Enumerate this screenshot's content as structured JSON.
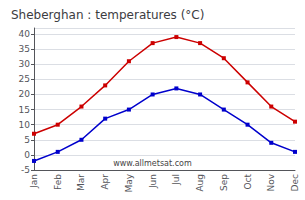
{
  "chart_data": {
    "type": "line",
    "title": "Sheberghan : temperatures (°C)",
    "categories": [
      "Jan",
      "Feb",
      "Mar",
      "Apr",
      "May",
      "Jun",
      "Jul",
      "Aug",
      "Sep",
      "Oct",
      "Nov",
      "Dec"
    ],
    "series": [
      {
        "color": "#cc0000",
        "values": [
          7,
          10,
          16,
          23,
          31,
          37,
          39,
          37,
          32,
          24,
          16,
          11
        ]
      },
      {
        "color": "#0000cc",
        "values": [
          -2,
          1,
          5,
          12,
          15,
          20,
          22,
          20,
          15,
          10,
          4,
          1
        ]
      }
    ],
    "ylim": [
      -5,
      42
    ],
    "yticks": [
      -5,
      0,
      5,
      10,
      15,
      20,
      25,
      30,
      35,
      40
    ],
    "grid": true,
    "marker": "square",
    "line_style": "solid",
    "annotations": [
      "www.allmetsat.com"
    ]
  }
}
